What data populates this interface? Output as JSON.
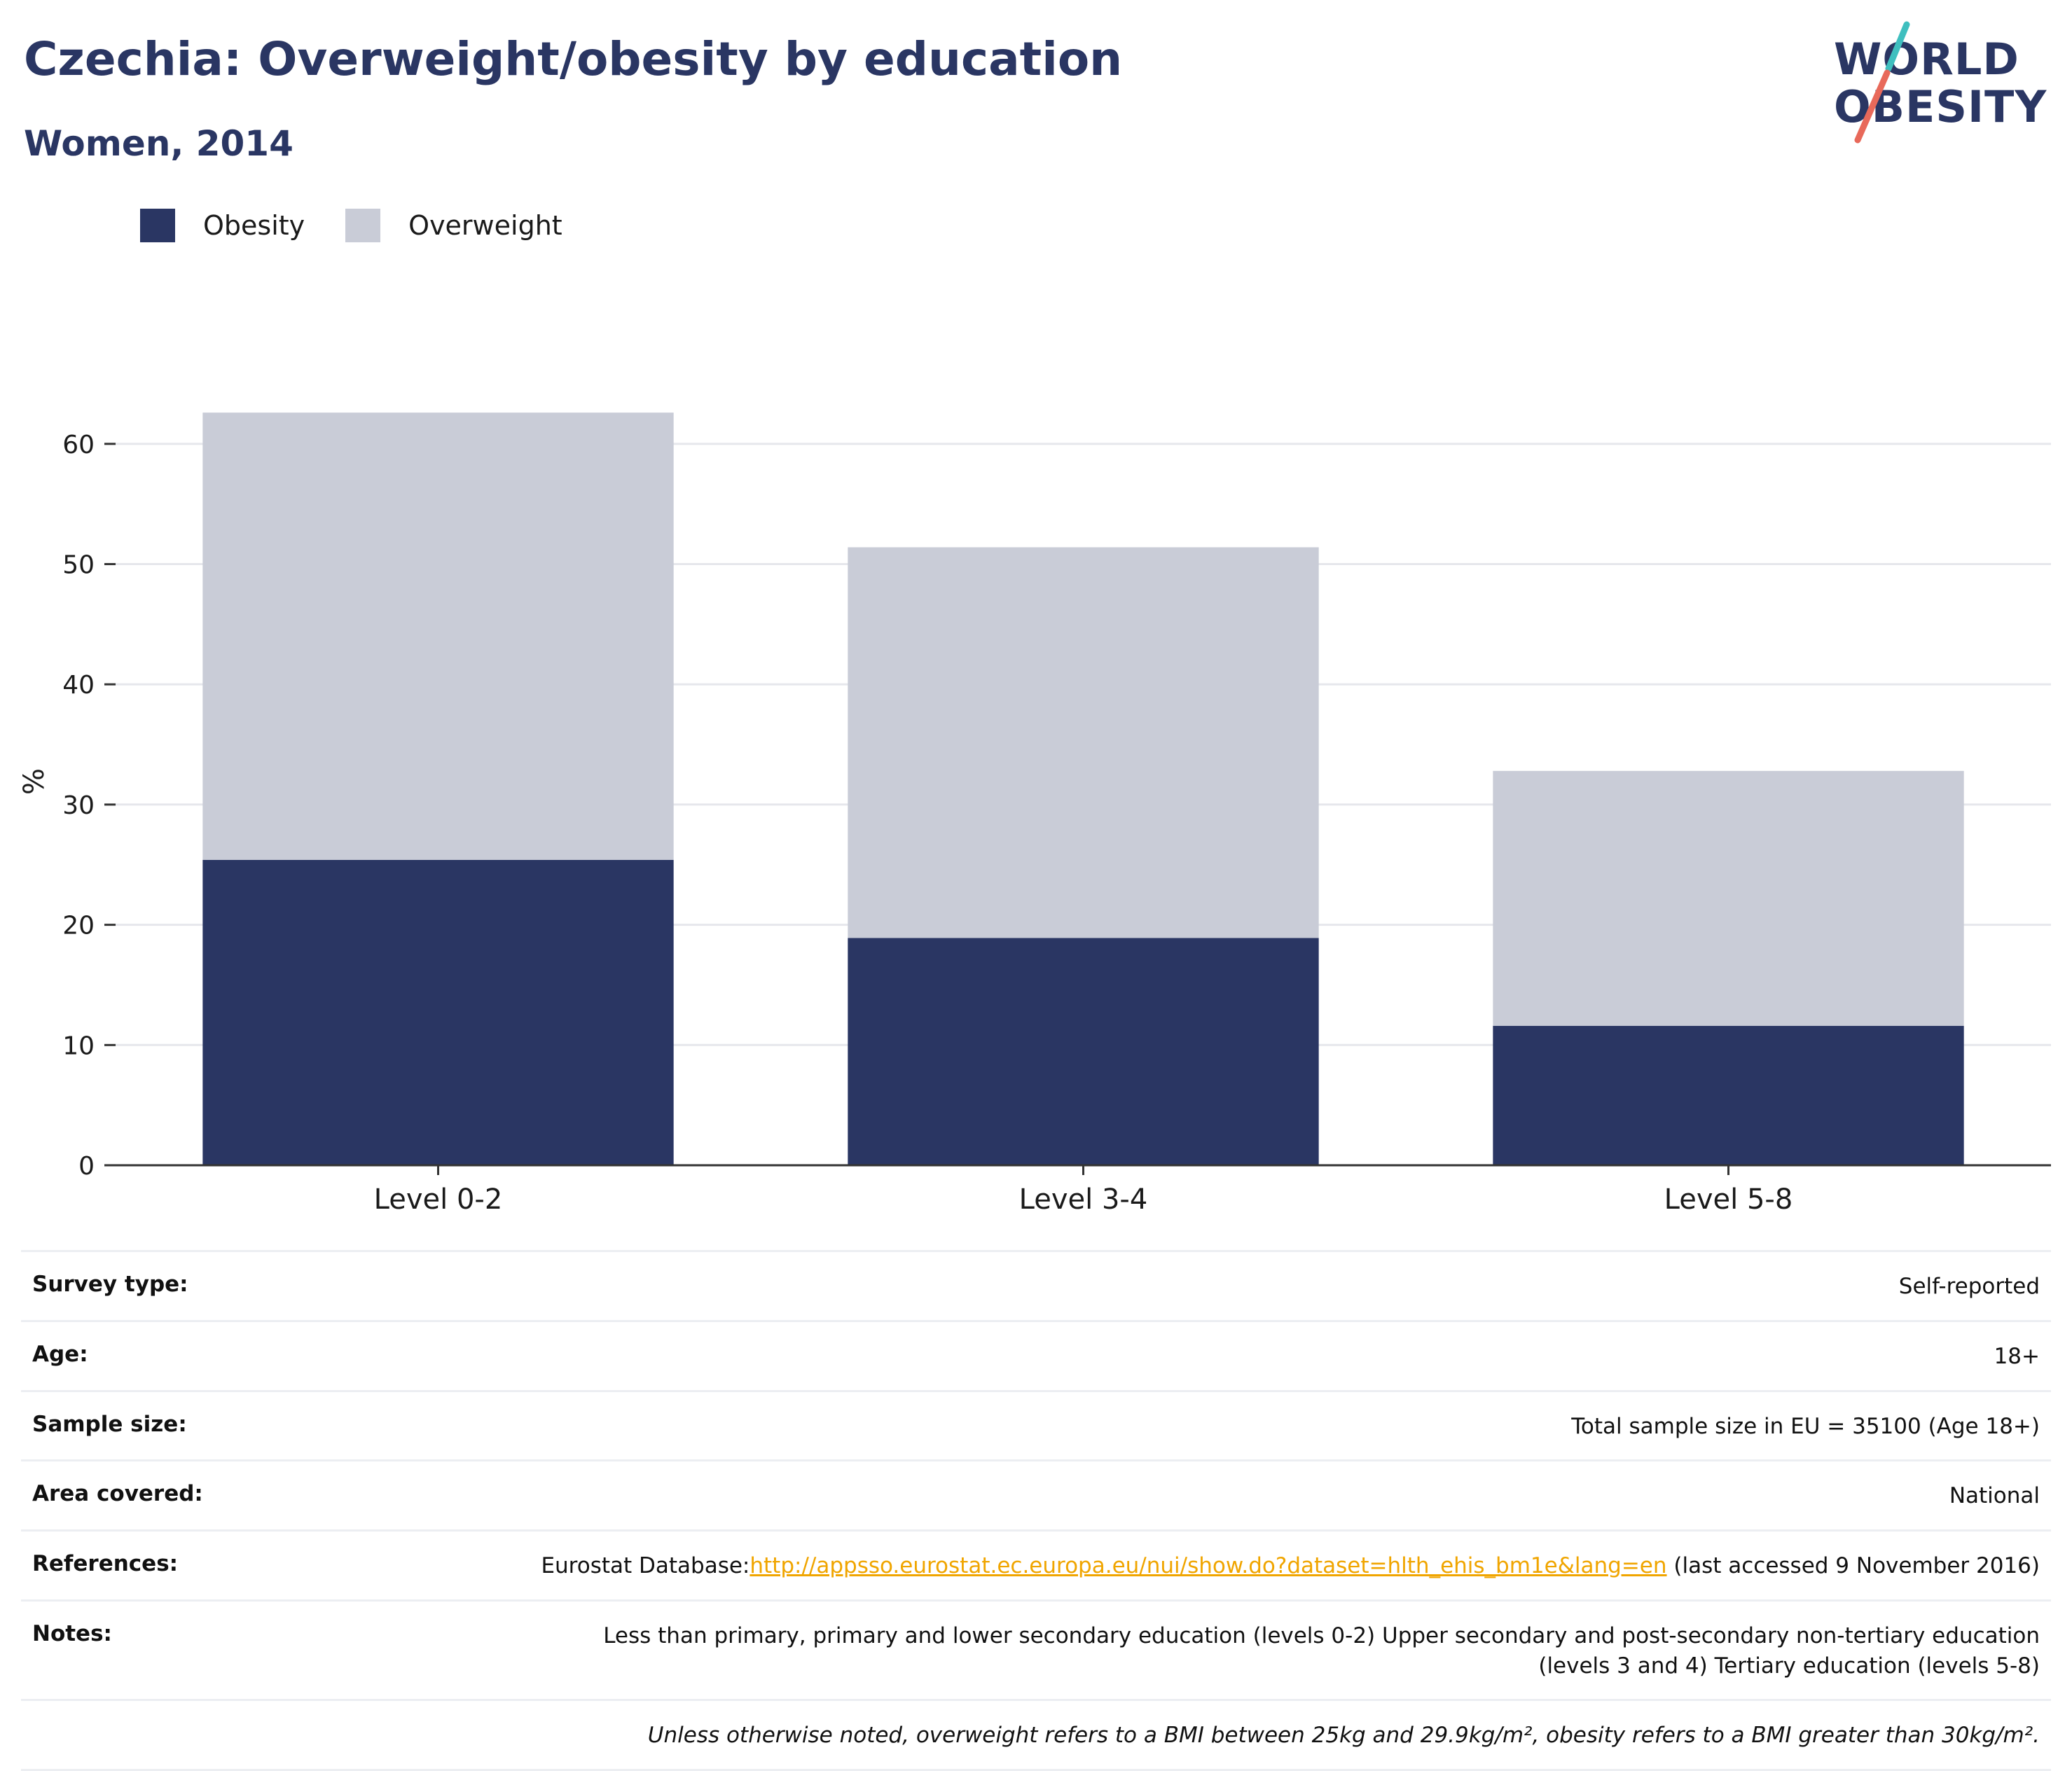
{
  "header": {
    "title": "Czechia: Overweight/obesity by education",
    "subtitle": "Women, 2014"
  },
  "logo": {
    "line1": "WORLD",
    "line2": "OBESITY",
    "colors": {
      "text": "#2a3663",
      "slash_teal": "#3fbfbf",
      "slash_coral": "#e8695a"
    }
  },
  "colors": {
    "obesity": "#2a3663",
    "overweight": "#c9ccd7",
    "link": "#f0a500",
    "title": "#2a3663"
  },
  "legend": [
    {
      "label": "Obesity",
      "color": "#2a3663"
    },
    {
      "label": "Overweight",
      "color": "#c9ccd7"
    }
  ],
  "chart_data": {
    "type": "bar",
    "stacked": true,
    "categories": [
      "Level 0-2",
      "Level 3-4",
      "Level 5-8"
    ],
    "series": [
      {
        "name": "Obesity",
        "values": [
          25.4,
          18.9,
          11.6
        ]
      },
      {
        "name": "Overweight",
        "values": [
          37.2,
          32.5,
          21.2
        ]
      }
    ],
    "totals": [
      62.6,
      51.4,
      32.8
    ],
    "title": "Czechia: Overweight/obesity by education",
    "subtitle": "Women, 2014",
    "xlabel": "",
    "ylabel": "%",
    "ylim": [
      0,
      65
    ],
    "yticks": [
      0,
      10,
      20,
      30,
      40,
      50,
      60
    ],
    "grid": true,
    "legend_position": "top-left"
  },
  "info": {
    "survey_type": {
      "label": "Survey type:",
      "value": "Self-reported"
    },
    "age": {
      "label": "Age:",
      "value": "18+"
    },
    "sample_size": {
      "label": "Sample size:",
      "value": "Total sample size in EU = 35100 (Age 18+)"
    },
    "area_covered": {
      "label": "Area covered:",
      "value": "National"
    },
    "references": {
      "label": "References:",
      "prefix": "Eurostat Database:",
      "url": "http://appsso.eurostat.ec.europa.eu/nui/show.do?dataset=hlth_ehis_bm1e&lang=en",
      "suffix": " (last accessed 9 November 2016)"
    },
    "notes": {
      "label": "Notes:",
      "value": "Less than primary, primary and lower secondary education (levels 0-2) Upper secondary and post-secondary non-tertiary education (levels 3 and 4) Tertiary education (levels 5-8)"
    },
    "footnote": "Unless otherwise noted, overweight refers to a BMI between 25kg and 29.9kg/m², obesity refers to a BMI greater than 30kg/m²."
  }
}
